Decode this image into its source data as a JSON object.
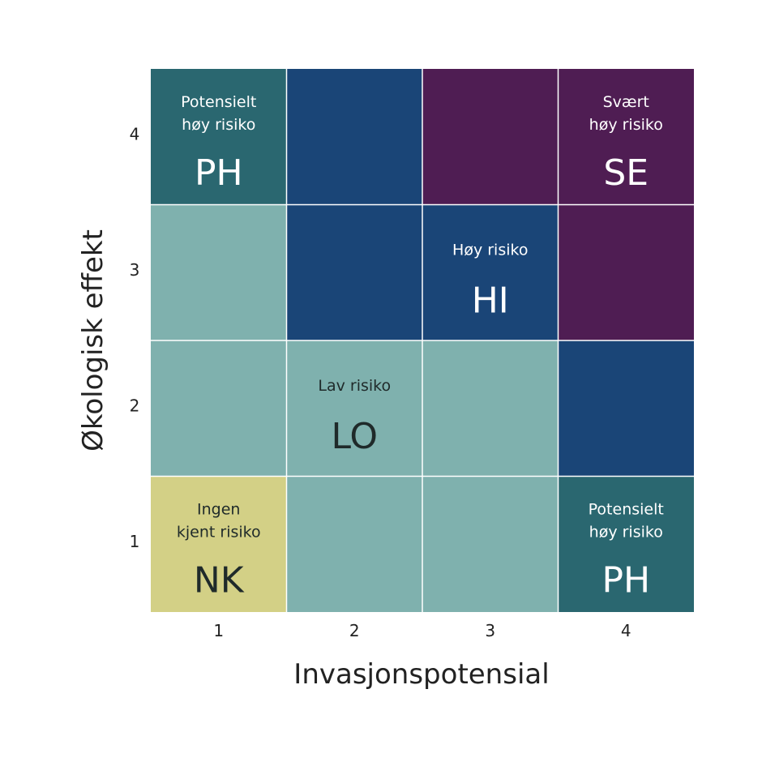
{
  "chart_data": {
    "type": "heatmap",
    "xlabel": "Invasjonspotensial",
    "ylabel": "Økologisk effekt",
    "x_ticks": [
      "1",
      "2",
      "3",
      "4"
    ],
    "y_ticks": [
      "1",
      "2",
      "3",
      "4"
    ],
    "grid": true,
    "categories": {
      "NK": {
        "label_lines": [
          "Ingen",
          "kjent risiko"
        ],
        "color": "#D3D086",
        "text_color": "#1f2a2a"
      },
      "LO": {
        "label_lines": [
          "Lav risiko"
        ],
        "color": "#7FB1AE",
        "text_color": "#1f2a2a"
      },
      "PH": {
        "label_lines": [
          "Potensielt",
          "høy risiko"
        ],
        "color": "#2A6770",
        "text_color": "#ffffff"
      },
      "HI": {
        "label_lines": [
          "Høy risiko"
        ],
        "color": "#1A4577",
        "text_color": "#ffffff"
      },
      "SE": {
        "label_lines": [
          "Svært",
          "høy risiko"
        ],
        "color": "#4F1D53",
        "text_color": "#ffffff"
      }
    },
    "cells": [
      {
        "x": 1,
        "y": 4,
        "category": "PH",
        "labeled": true
      },
      {
        "x": 2,
        "y": 4,
        "category": "HI",
        "labeled": false
      },
      {
        "x": 3,
        "y": 4,
        "category": "SE",
        "labeled": false
      },
      {
        "x": 4,
        "y": 4,
        "category": "SE",
        "labeled": true
      },
      {
        "x": 1,
        "y": 3,
        "category": "LO",
        "labeled": false
      },
      {
        "x": 2,
        "y": 3,
        "category": "HI",
        "labeled": false
      },
      {
        "x": 3,
        "y": 3,
        "category": "HI",
        "labeled": true
      },
      {
        "x": 4,
        "y": 3,
        "category": "SE",
        "labeled": false
      },
      {
        "x": 1,
        "y": 2,
        "category": "LO",
        "labeled": false
      },
      {
        "x": 2,
        "y": 2,
        "category": "LO",
        "labeled": true
      },
      {
        "x": 3,
        "y": 2,
        "category": "LO",
        "labeled": false
      },
      {
        "x": 4,
        "y": 2,
        "category": "HI",
        "labeled": false
      },
      {
        "x": 1,
        "y": 1,
        "category": "NK",
        "labeled": true
      },
      {
        "x": 2,
        "y": 1,
        "category": "LO",
        "labeled": false
      },
      {
        "x": 3,
        "y": 1,
        "category": "LO",
        "labeled": false
      },
      {
        "x": 4,
        "y": 1,
        "category": "PH",
        "labeled": true
      }
    ]
  }
}
